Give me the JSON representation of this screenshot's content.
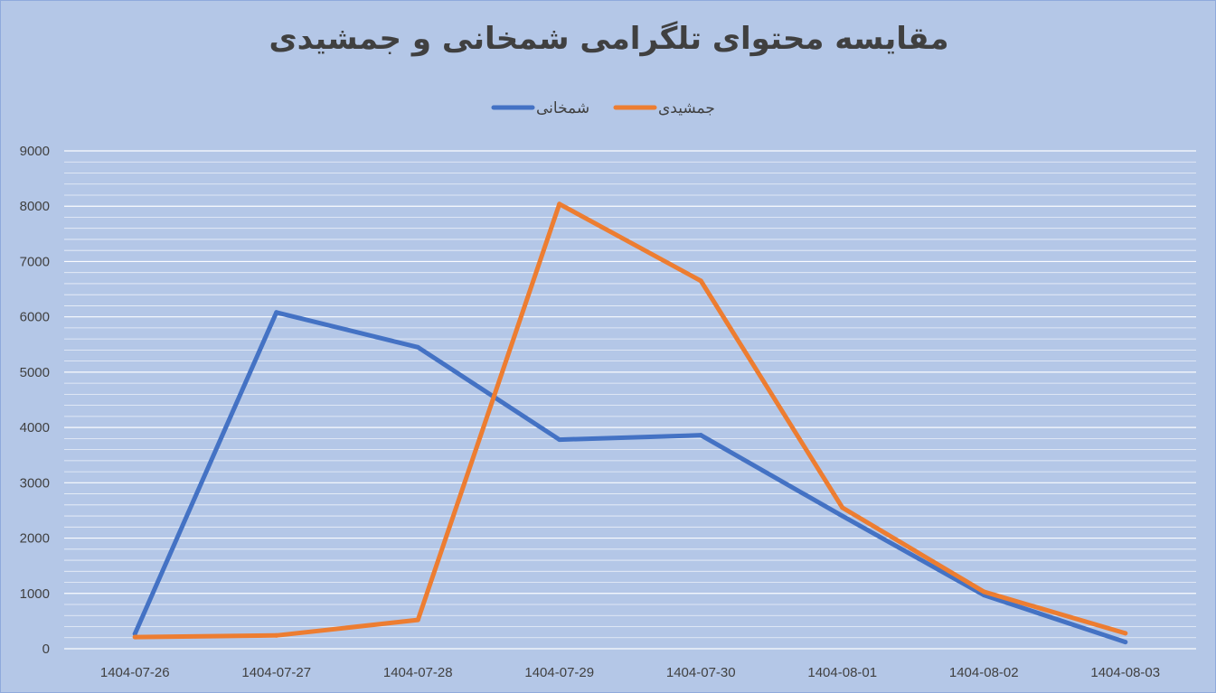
{
  "chart_data": {
    "type": "line",
    "title": "مقایسه  محتوای تلگرامی شمخانی و جمشیدی",
    "xlabel": "",
    "ylabel": "",
    "categories": [
      "1404-07-26",
      "1404-07-27",
      "1404-07-28",
      "1404-07-29",
      "1404-07-30",
      "1404-08-01",
      "1404-08-02",
      "1404-08-03"
    ],
    "ylim": [
      0,
      9000
    ],
    "yticks": [
      0,
      1000,
      2000,
      3000,
      4000,
      5000,
      6000,
      7000,
      8000,
      9000
    ],
    "grid": "horizontal",
    "legend_position": "top",
    "series": [
      {
        "name": "شمخانی",
        "color": "#4472c4",
        "values": [
          270,
          6080,
          5450,
          3780,
          3860,
          2400,
          970,
          120
        ]
      },
      {
        "name": "جمشیدی",
        "color": "#ed7d31",
        "values": [
          210,
          240,
          520,
          8040,
          6650,
          2550,
          1030,
          280
        ]
      }
    ]
  }
}
